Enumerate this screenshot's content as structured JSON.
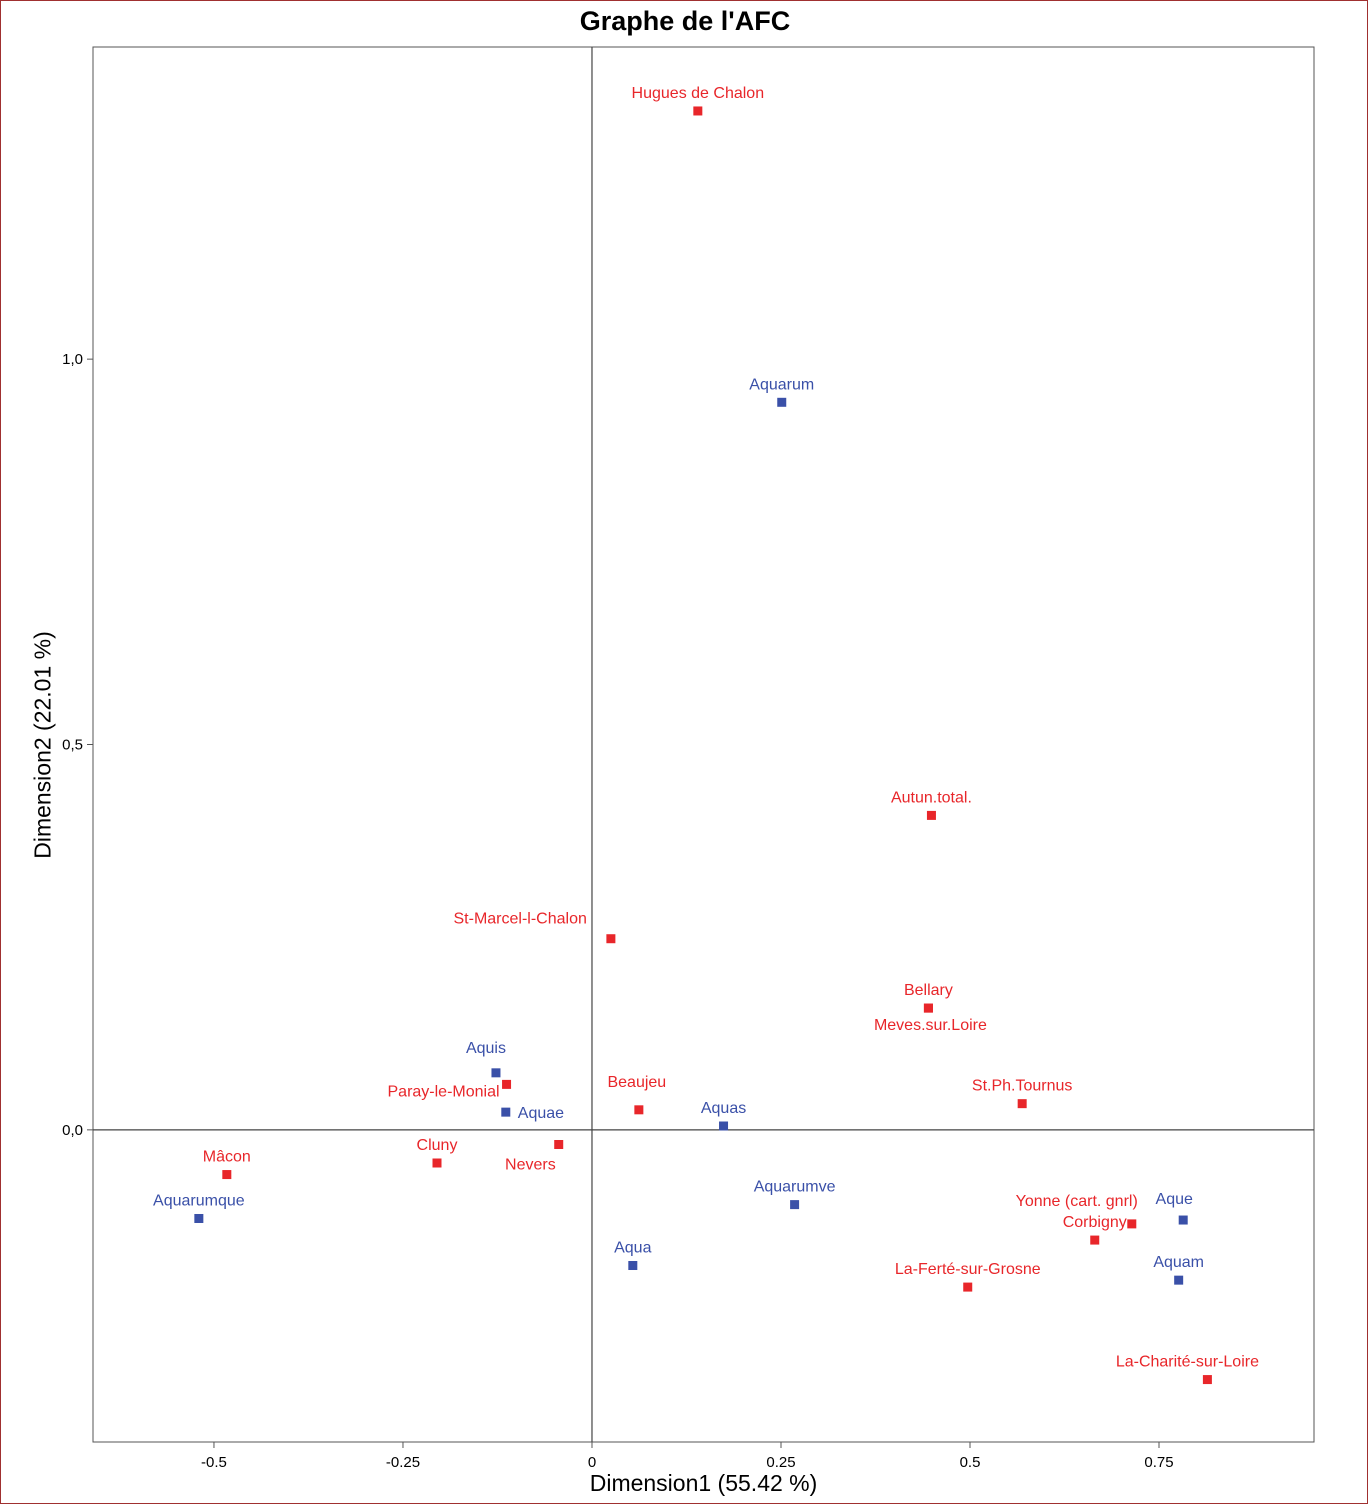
{
  "chart_data": {
    "type": "scatter",
    "title": "Graphe de l'AFC",
    "xlabel": "Dimension1 (55.42 %)",
    "ylabel": "Dimension2 (22.01 %)",
    "xlim": [
      -0.66,
      0.955
    ],
    "ylim": [
      -0.405,
      1.405
    ],
    "x_ticks": [
      {
        "value": -0.5,
        "label": "-0.5"
      },
      {
        "value": -0.25,
        "label": "-0.25"
      },
      {
        "value": 0,
        "label": "0"
      },
      {
        "value": 0.25,
        "label": "0.25"
      },
      {
        "value": 0.5,
        "label": "0.5"
      },
      {
        "value": 0.75,
        "label": "0.75"
      }
    ],
    "y_ticks": [
      {
        "value": 0,
        "label": "0,0"
      },
      {
        "value": 0.5,
        "label": "0,5"
      },
      {
        "value": 1,
        "label": "1,0"
      }
    ],
    "reference_lines": {
      "x": 0,
      "y": 0
    },
    "grid": false,
    "colors": {
      "rows": "#e8262a",
      "columns": "#3a50a8"
    },
    "series": [
      {
        "color": "#e8262a",
        "points": [
          {
            "label": "Hugues de Chalon",
            "x": 0.14,
            "y": 1.322,
            "anchor": "middle",
            "dx": 0,
            "dy": -13
          },
          {
            "label": "Autun.total.",
            "x": 0.449,
            "y": 0.408,
            "anchor": "middle",
            "dx": 0,
            "dy": -13
          },
          {
            "label": "St-Marcel-l-Chalon",
            "x": 0.025,
            "y": 0.248,
            "anchor": "end",
            "dx": -24,
            "dy": -15
          },
          {
            "label": "Bellary",
            "x": 0.445,
            "y": 0.158,
            "anchor": "middle",
            "dx": 0,
            "dy": -13
          },
          {
            "label": "Meves.sur.Loire",
            "x": 0.445,
            "y": 0.158,
            "anchor": "middle",
            "dx": 2,
            "dy": 22
          },
          {
            "label": "Paray-le-Monial",
            "x": -0.113,
            "y": 0.059,
            "anchor": "end",
            "dx": -7,
            "dy": 12
          },
          {
            "label": "Beaujeu",
            "x": 0.062,
            "y": 0.026,
            "anchor": "middle",
            "dx": -2,
            "dy": -23
          },
          {
            "label": "St.Ph.Tournus",
            "x": 0.569,
            "y": 0.034,
            "anchor": "middle",
            "dx": 0,
            "dy": -13
          },
          {
            "label": "Nevers",
            "x": -0.044,
            "y": -0.019,
            "anchor": "end",
            "dx": -3,
            "dy": 25
          },
          {
            "label": "Cluny",
            "x": -0.205,
            "y": -0.043,
            "anchor": "middle",
            "dx": 0,
            "dy": -13
          },
          {
            "label": "Mâcon",
            "x": -0.483,
            "y": -0.058,
            "anchor": "middle",
            "dx": 0,
            "dy": -13
          },
          {
            "label": "Yonne (cart. gnrl)",
            "x": 0.714,
            "y": -0.122,
            "anchor": "end",
            "dx": 6,
            "dy": -18
          },
          {
            "label": "Corbigny",
            "x": 0.665,
            "y": -0.143,
            "anchor": "middle",
            "dx": 0,
            "dy": -13
          },
          {
            "label": "La-Ferté-sur-Grosne",
            "x": 0.497,
            "y": -0.204,
            "anchor": "middle",
            "dx": 0,
            "dy": -13
          },
          {
            "label": "La-Charité-sur-Loire",
            "x": 0.814,
            "y": -0.324,
            "anchor": "middle",
            "dx": -20,
            "dy": -13
          }
        ]
      },
      {
        "color": "#3a50a8",
        "points": [
          {
            "label": "Aquarum",
            "x": 0.251,
            "y": 0.944,
            "anchor": "middle",
            "dx": 0,
            "dy": -13
          },
          {
            "label": "Aquis",
            "x": -0.127,
            "y": 0.074,
            "anchor": "middle",
            "dx": -10,
            "dy": -20
          },
          {
            "label": "Aquae",
            "x": -0.114,
            "y": 0.023,
            "anchor": "start",
            "dx": 12,
            "dy": 6
          },
          {
            "label": "Aquas",
            "x": 0.174,
            "y": 0.005,
            "anchor": "middle",
            "dx": 0,
            "dy": -13
          },
          {
            "label": "Aquarumve",
            "x": 0.268,
            "y": -0.097,
            "anchor": "middle",
            "dx": 0,
            "dy": -13
          },
          {
            "label": "Aquarumque",
            "x": -0.52,
            "y": -0.115,
            "anchor": "middle",
            "dx": 0,
            "dy": -13
          },
          {
            "label": "Aque",
            "x": 0.782,
            "y": -0.117,
            "anchor": "middle",
            "dx": -9,
            "dy": -16
          },
          {
            "label": "Aqua",
            "x": 0.054,
            "y": -0.176,
            "anchor": "middle",
            "dx": 0,
            "dy": -13
          },
          {
            "label": "Aquam",
            "x": 0.776,
            "y": -0.195,
            "anchor": "middle",
            "dx": 0,
            "dy": -13
          }
        ]
      }
    ]
  }
}
